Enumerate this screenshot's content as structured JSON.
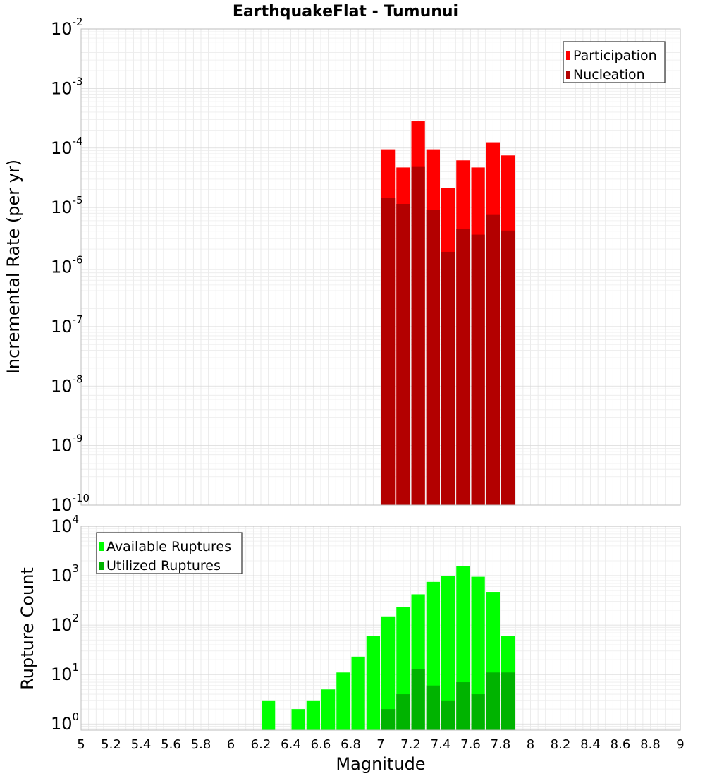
{
  "chart_data": [
    {
      "type": "bar",
      "title": "EarthquakeFlat - Tumunui",
      "ylabel": "Incremental Rate (per yr)",
      "xlabel": "",
      "yscale": "log",
      "ylim": [
        1e-10,
        0.01
      ],
      "xlim": [
        5,
        9
      ],
      "bin_width": 0.1,
      "grid": true,
      "legend_position": "top-right",
      "y_ticks": [
        {
          "base": "10",
          "exp": "-10",
          "value": 1e-10
        },
        {
          "base": "10",
          "exp": "-9",
          "value": 1e-09
        },
        {
          "base": "10",
          "exp": "-8",
          "value": 1e-08
        },
        {
          "base": "10",
          "exp": "-7",
          "value": 1e-07
        },
        {
          "base": "10",
          "exp": "-6",
          "value": 1e-06
        },
        {
          "base": "10",
          "exp": "-5",
          "value": 1e-05
        },
        {
          "base": "10",
          "exp": "-4",
          "value": 0.0001
        },
        {
          "base": "10",
          "exp": "-3",
          "value": 0.001
        },
        {
          "base": "10",
          "exp": "-2",
          "value": 0.01
        }
      ],
      "x": [
        7.05,
        7.15,
        7.25,
        7.35,
        7.45,
        7.55,
        7.65,
        7.75,
        7.85
      ],
      "series": [
        {
          "name": "Participation",
          "color": "#ff0000",
          "values": [
            9.5e-05,
            4.7e-05,
            0.00028,
            9.5e-05,
            2.1e-05,
            6.2e-05,
            4.7e-05,
            0.000125,
            7.5e-05
          ]
        },
        {
          "name": "Nucleation",
          "color": "#b30000",
          "values": [
            1.45e-05,
            1.15e-05,
            4.8e-05,
            9e-06,
            1.8e-06,
            4.4e-06,
            3.5e-06,
            7.5e-06,
            4.1e-06
          ]
        }
      ]
    },
    {
      "type": "bar",
      "title": "",
      "ylabel": "Rupture Count",
      "xlabel": "Magnitude",
      "yscale": "log",
      "ylim": [
        0.75,
        10000
      ],
      "xlim": [
        5,
        9
      ],
      "bin_width": 0.1,
      "grid": true,
      "legend_position": "top-left",
      "y_ticks": [
        {
          "base": "10",
          "exp": "0",
          "value": 1
        },
        {
          "base": "10",
          "exp": "1",
          "value": 10
        },
        {
          "base": "10",
          "exp": "2",
          "value": 100
        },
        {
          "base": "10",
          "exp": "3",
          "value": 1000
        },
        {
          "base": "10",
          "exp": "4",
          "value": 10000
        }
      ],
      "x_ticks": [
        "5",
        "5.2",
        "5.4",
        "5.6",
        "5.8",
        "6",
        "6.2",
        "6.4",
        "6.6",
        "6.8",
        "7",
        "7.2",
        "7.4",
        "7.6",
        "7.8",
        "8",
        "8.2",
        "8.4",
        "8.6",
        "8.8",
        "9"
      ],
      "x": [
        6.25,
        6.35,
        6.45,
        6.55,
        6.65,
        6.75,
        6.85,
        6.95,
        7.05,
        7.15,
        7.25,
        7.35,
        7.45,
        7.55,
        7.65,
        7.75,
        7.85
      ],
      "series": [
        {
          "name": "Available Ruptures",
          "color": "#00ff00",
          "values": [
            3,
            null,
            2,
            3,
            5,
            11,
            23,
            60,
            150,
            230,
            420,
            750,
            1000,
            1550,
            950,
            470,
            60
          ]
        },
        {
          "name": "Utilized Ruptures",
          "color": "#00b300",
          "values": [
            null,
            null,
            null,
            null,
            null,
            null,
            null,
            null,
            2,
            4,
            13,
            6,
            3,
            7,
            4,
            11,
            11
          ]
        }
      ]
    }
  ]
}
